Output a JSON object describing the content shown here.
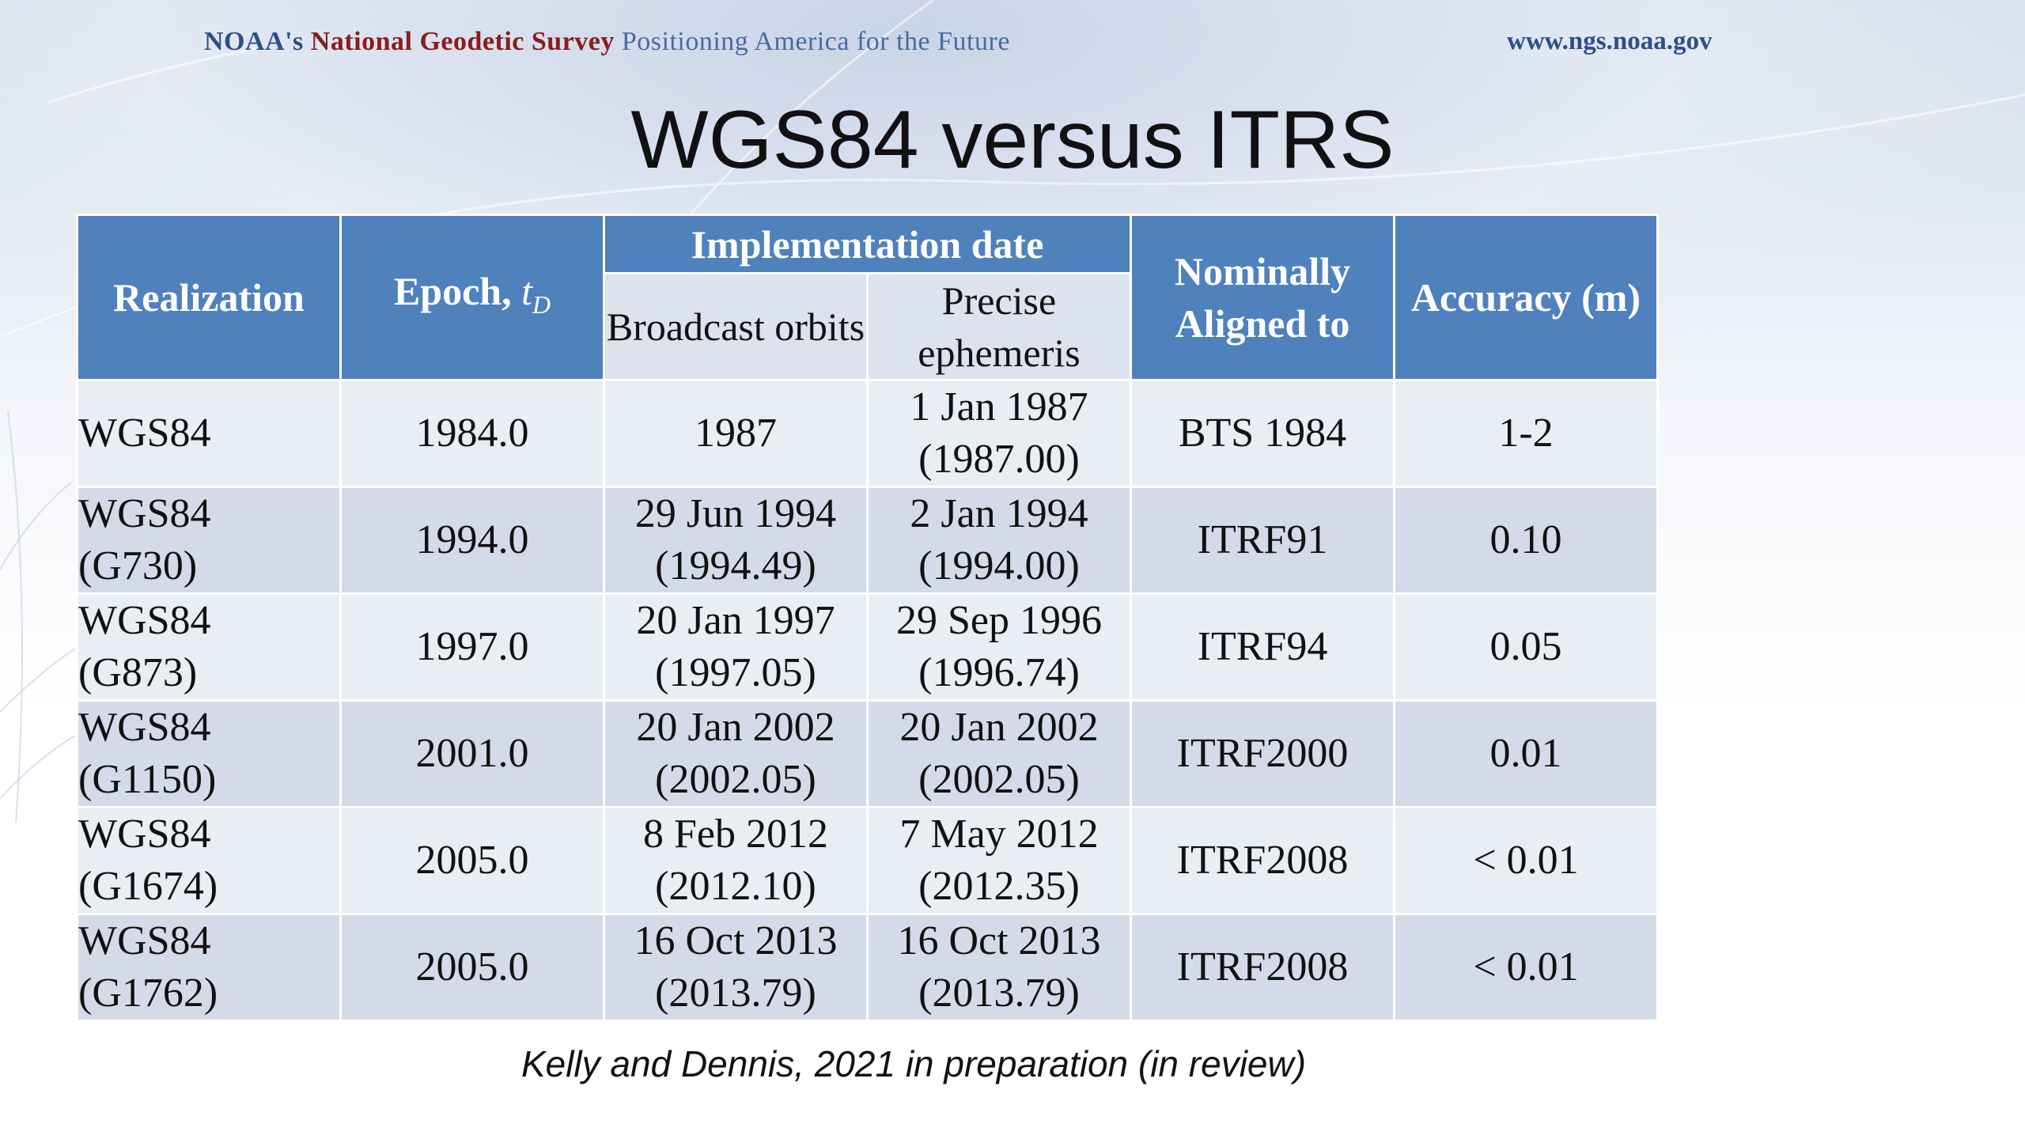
{
  "header": {
    "org_prefix": "NOAA's",
    "org_name": "National Geodetic Survey",
    "tagline": "Positioning America for the Future",
    "website": "www.ngs.noaa.gov"
  },
  "slide": {
    "title": "WGS84 versus ITRS",
    "caption": "Kelly and Dennis, 2021 in preparation (in review)"
  },
  "table": {
    "headers": {
      "realization": "Realization",
      "epoch_prefix": "Epoch, ",
      "epoch_var": "t",
      "epoch_sub": "D",
      "implementation": "Implementation date",
      "broadcast": "Broadcast orbits",
      "precise_1": "Precise",
      "precise_2": "ephemeris",
      "aligned_1": "Nominally",
      "aligned_2": "Aligned to",
      "accuracy": "Accuracy (m)"
    },
    "rows": [
      {
        "realization": "WGS84",
        "epoch": "1984.0",
        "broadcast_1": "1987",
        "broadcast_2": "",
        "precise_1": "1 Jan 1987",
        "precise_2": "(1987.00)",
        "aligned": "BTS 1984",
        "accuracy": "1-2"
      },
      {
        "realization": "WGS84 (G730)",
        "epoch": "1994.0",
        "broadcast_1": "29 Jun 1994",
        "broadcast_2": "(1994.49)",
        "precise_1": "2 Jan 1994",
        "precise_2": "(1994.00)",
        "aligned": "ITRF91",
        "accuracy": "0.10"
      },
      {
        "realization": "WGS84 (G873)",
        "epoch": "1997.0",
        "broadcast_1": "20 Jan 1997",
        "broadcast_2": "(1997.05)",
        "precise_1": "29 Sep 1996",
        "precise_2": "(1996.74)",
        "aligned": "ITRF94",
        "accuracy": "0.05"
      },
      {
        "realization": "WGS84 (G1150)",
        "epoch": "2001.0",
        "broadcast_1": "20 Jan 2002",
        "broadcast_2": "(2002.05)",
        "precise_1": "20 Jan 2002",
        "precise_2": "(2002.05)",
        "aligned": "ITRF2000",
        "accuracy": "0.01"
      },
      {
        "realization": "WGS84 (G1674)",
        "epoch": "2005.0",
        "broadcast_1": "8 Feb 2012",
        "broadcast_2": "(2012.10)",
        "precise_1": "7 May 2012",
        "precise_2": "(2012.35)",
        "aligned": "ITRF2008",
        "accuracy": "< 0.01"
      },
      {
        "realization": "WGS84 (G1762)",
        "epoch": "2005.0",
        "broadcast_1": "16 Oct 2013",
        "broadcast_2": "(2013.79)",
        "precise_1": "16 Oct 2013",
        "precise_2": "(2013.79)",
        "aligned": "ITRF2008",
        "accuracy": "< 0.01"
      }
    ]
  },
  "colors": {
    "header_blue": "#4f81bd",
    "row_light": "#e9edf4",
    "row_dark": "#d4dbe8",
    "subheader": "#dce3ef",
    "org_red": "#8a1c1c",
    "org_blue": "#2d4f8a"
  }
}
